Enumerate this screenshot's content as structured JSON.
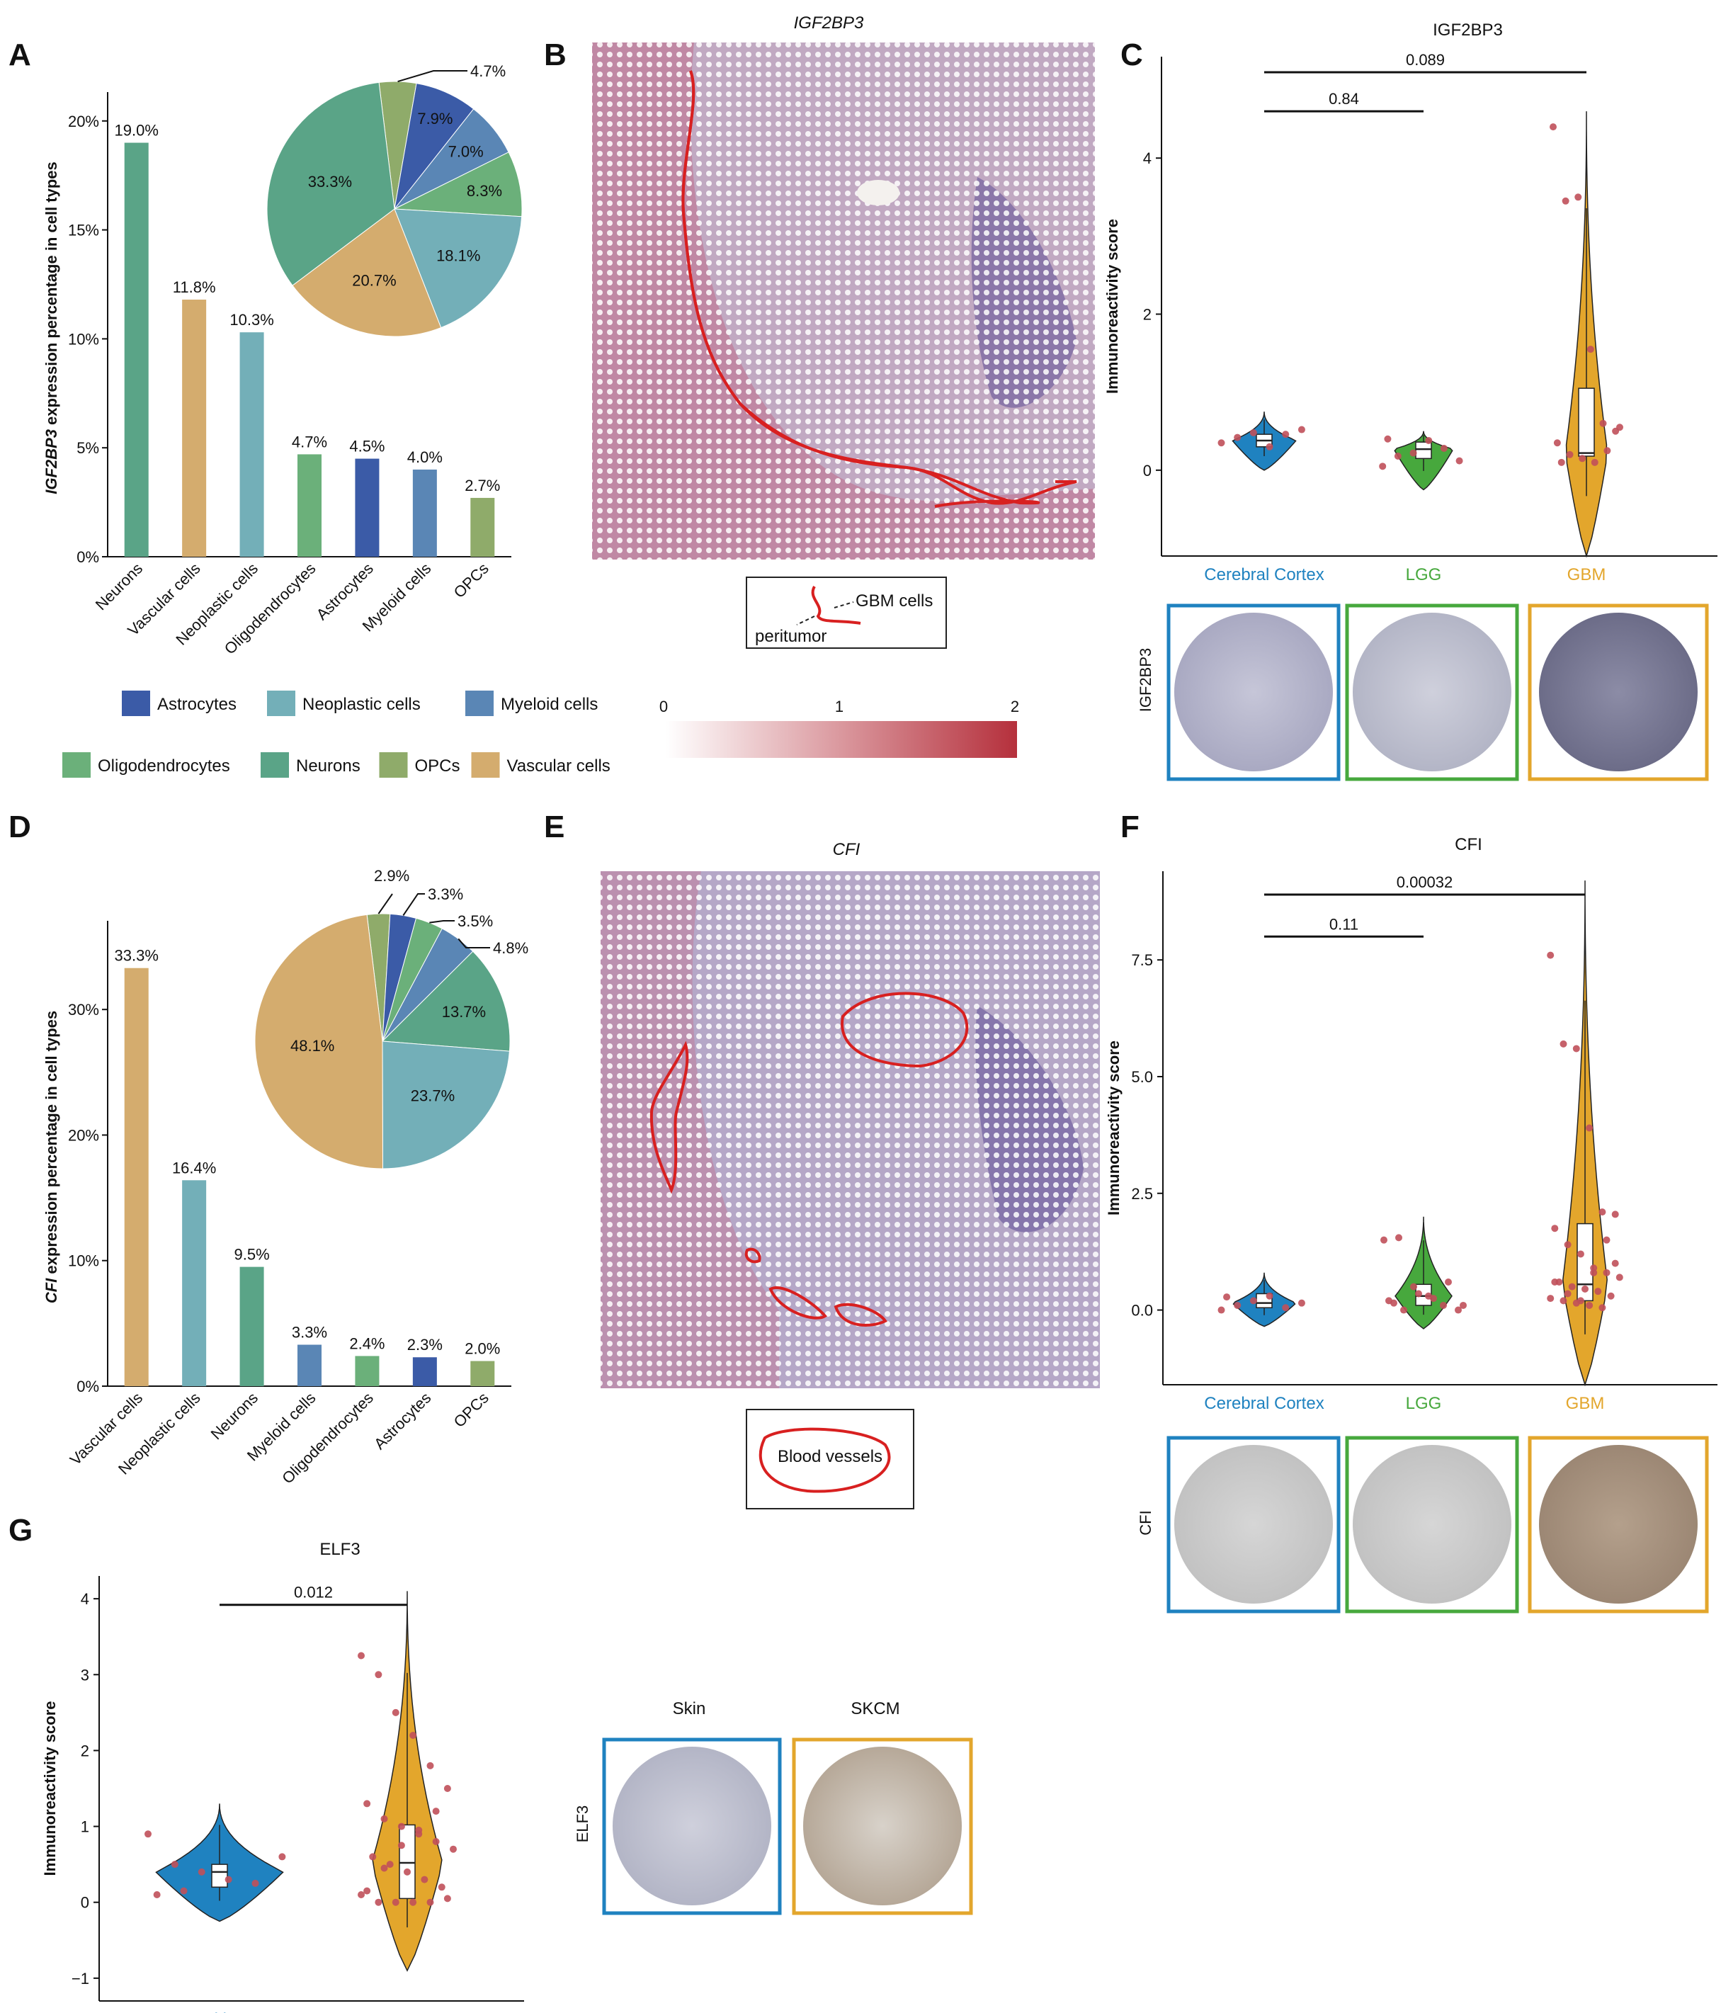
{
  "panels": {
    "A": "A",
    "B": "B",
    "C": "C",
    "D": "D",
    "E": "E",
    "F": "F",
    "G": "G"
  },
  "colors": {
    "Neurons": "#5aa487",
    "Vascular cells": "#d4ac6e",
    "Neoplastic cells": "#73afb8",
    "Oligodendrocytes": "#6bb07a",
    "Astrocytes": "#3b5ba7",
    "Myeloid cells": "#5a86b5",
    "OPCs": "#8fab6a",
    "cortex": "#1f82c0",
    "lgg": "#47a83d",
    "gbm": "#e3a62c",
    "skin": "#1f82c0",
    "skcm": "#e3a62c",
    "bracket": "#111111"
  },
  "legend": {
    "row1": [
      "Astrocytes",
      "Neoplastic cells",
      "Myeloid cells"
    ],
    "row2": [
      "Oligodendrocytes",
      "Neurons",
      "OPCs",
      "Vascular cells"
    ]
  },
  "spatial_B": {
    "title": "IGF2BP3",
    "inset_labels": [
      "GBM cells",
      "peritumor"
    ],
    "colorbar_ticks": [
      "0",
      "1",
      "2"
    ]
  },
  "spatial_E": {
    "title": "CFI",
    "inset_label": "Blood vessels"
  },
  "ihc": {
    "C_row_label": "IGF2BP3",
    "F_row_label": "CFI",
    "G_row_label": "ELF3",
    "G_col_labels": [
      "Skin",
      "SKCM"
    ]
  },
  "chart_data": [
    {
      "id": "A-bar",
      "type": "bar",
      "categories": [
        "Neurons",
        "Vascular cells",
        "Neoplastic cells",
        "Oligodendrocytes",
        "Astrocytes",
        "Myeloid cells",
        "OPCs"
      ],
      "values": [
        19.0,
        11.8,
        10.3,
        4.7,
        4.5,
        4.0,
        2.7
      ],
      "value_labels": [
        "19.0%",
        "11.8%",
        "10.3%",
        "4.7%",
        "4.5%",
        "4.0%",
        "2.7%"
      ],
      "ylabel": "IGF2BP3 expression percentage in cell types",
      "ylim": [
        0,
        21
      ],
      "yticks": [
        0,
        5,
        10,
        15,
        20
      ],
      "ytick_labels": [
        "0%",
        "5%",
        "10%",
        "15%",
        "20%"
      ]
    },
    {
      "id": "A-pie",
      "type": "pie",
      "slices": [
        {
          "name": "OPCs",
          "value": 4.7,
          "label": "4.7%"
        },
        {
          "name": "Astrocytes",
          "value": 7.9,
          "label": "7.9%"
        },
        {
          "name": "Myeloid cells",
          "value": 7.0,
          "label": "7.0%"
        },
        {
          "name": "Oligodendrocytes",
          "value": 8.3,
          "label": "8.3%"
        },
        {
          "name": "Neoplastic cells",
          "value": 18.1,
          "label": "18.1%"
        },
        {
          "name": "Vascular cells",
          "value": 20.7,
          "label": "20.7%"
        },
        {
          "name": "Neurons",
          "value": 33.3,
          "label": "33.3%"
        }
      ]
    },
    {
      "id": "C-violin",
      "type": "violin",
      "title": "IGF2BP3",
      "ylabel": "Immunoreactivity score",
      "ylim": [
        -1.1,
        5.3
      ],
      "yticks": [
        0,
        2,
        4
      ],
      "ytick_labels": [
        "0",
        "2",
        "4"
      ],
      "groups": [
        {
          "name": "Cerebral Cortex",
          "color_key": "cortex",
          "ymin": 0.0,
          "ymax": 0.75,
          "q1": 0.3,
          "median": 0.38,
          "q3": 0.46,
          "points": [
            0.35,
            0.42,
            0.48,
            0.3,
            0.46,
            0.52
          ]
        },
        {
          "name": "LGG",
          "color_key": "lgg",
          "ymin": -0.25,
          "ymax": 0.5,
          "q1": 0.15,
          "median": 0.27,
          "q3": 0.36,
          "points": [
            0.05,
            0.18,
            0.22,
            0.38,
            0.28,
            0.12,
            0.4
          ]
        },
        {
          "name": "GBM",
          "color_key": "gbm",
          "ymin": -1.1,
          "ymax": 4.6,
          "q1": 0.18,
          "median": 0.22,
          "q3": 1.05,
          "points": [
            4.4,
            3.45,
            3.5,
            1.55,
            0.6,
            0.5,
            0.35,
            0.2,
            0.15,
            0.1,
            0.25,
            0.55,
            0.1
          ]
        }
      ],
      "comparisons": [
        {
          "a": 0,
          "b": 1,
          "label": "0.84",
          "y": 4.6
        },
        {
          "a": 0,
          "b": 2,
          "label": "0.089",
          "y": 5.1
        }
      ]
    },
    {
      "id": "D-bar",
      "type": "bar",
      "categories": [
        "Vascular cells",
        "Neoplastic cells",
        "Neurons",
        "Myeloid cells",
        "Oligodendrocytes",
        "Astrocytes",
        "OPCs"
      ],
      "values": [
        33.3,
        16.4,
        9.5,
        3.3,
        2.4,
        2.3,
        2.0
      ],
      "value_labels": [
        "33.3%",
        "16.4%",
        "9.5%",
        "3.3%",
        "2.4%",
        "2.3%",
        "2.0%"
      ],
      "ylabel": "CFI expression percentage in cell types",
      "ylim": [
        0,
        36.5
      ],
      "yticks": [
        0,
        10,
        20,
        30
      ],
      "ytick_labels": [
        "0%",
        "10%",
        "20%",
        "30%"
      ]
    },
    {
      "id": "D-pie",
      "type": "pie",
      "slices": [
        {
          "name": "OPCs",
          "value": 2.9,
          "label": "2.9%"
        },
        {
          "name": "Astrocytes",
          "value": 3.3,
          "label": "3.3%"
        },
        {
          "name": "Oligodendrocytes",
          "value": 3.5,
          "label": "3.5%"
        },
        {
          "name": "Myeloid cells",
          "value": 4.8,
          "label": "4.8%"
        },
        {
          "name": "Neurons",
          "value": 13.7,
          "label": "13.7%"
        },
        {
          "name": "Neoplastic cells",
          "value": 23.7,
          "label": "23.7%"
        },
        {
          "name": "Vascular cells",
          "value": 48.1,
          "label": "48.1%"
        }
      ]
    },
    {
      "id": "F-violin",
      "type": "violin",
      "title": "CFI",
      "ylabel": "Immunoreactivity score",
      "ylim": [
        -1.6,
        9.4
      ],
      "yticks": [
        0,
        2.5,
        5,
        7.5
      ],
      "ytick_labels": [
        "0.0",
        "2.5",
        "5.0",
        "7.5"
      ],
      "groups": [
        {
          "name": "Cerebral Cortex",
          "color_key": "cortex",
          "ymin": -0.35,
          "ymax": 0.8,
          "q1": 0.05,
          "median": 0.15,
          "q3": 0.35,
          "points": [
            0.0,
            0.1,
            0.2,
            0.3,
            0.05,
            0.15,
            0.28
          ]
        },
        {
          "name": "LGG",
          "color_key": "lgg",
          "ymin": -0.4,
          "ymax": 2.0,
          "q1": 0.1,
          "median": 0.3,
          "q3": 0.55,
          "points": [
            1.5,
            1.55,
            0.5,
            0.3,
            0.1,
            0.0,
            0.2,
            0.0,
            0.35,
            0.25,
            0.6,
            0.1,
            0.15
          ]
        },
        {
          "name": "GBM",
          "color_key": "gbm",
          "ymin": -1.6,
          "ymax": 9.2,
          "q1": 0.2,
          "median": 0.55,
          "q3": 1.85,
          "points": [
            7.6,
            5.7,
            5.6,
            3.9,
            2.1,
            2.05,
            1.75,
            1.4,
            1.2,
            0.9,
            0.8,
            0.7,
            0.6,
            0.5,
            0.45,
            0.4,
            0.3,
            0.25,
            0.2,
            0.15,
            0.1,
            0.05,
            1.0,
            0.6,
            0.35,
            0.2,
            0.8,
            1.5
          ]
        }
      ],
      "comparisons": [
        {
          "a": 0,
          "b": 1,
          "label": "0.11",
          "y": 8.0
        },
        {
          "a": 0,
          "b": 2,
          "label": "0.00032",
          "y": 8.9
        }
      ]
    },
    {
      "id": "G-violin",
      "type": "violin",
      "title": "ELF3",
      "ylabel": "Immunoreactivity score",
      "ylim": [
        -1.3,
        4.3
      ],
      "yticks": [
        -1,
        0,
        1,
        2,
        3,
        4
      ],
      "ytick_labels": [
        "−1",
        "0",
        "1",
        "2",
        "3",
        "4"
      ],
      "groups": [
        {
          "name": "Skin",
          "color_key": "skin",
          "ymin": -0.25,
          "ymax": 1.3,
          "q1": 0.2,
          "median": 0.4,
          "q3": 0.5,
          "points": [
            0.9,
            0.5,
            0.4,
            0.3,
            0.25,
            0.6,
            0.1,
            0.15
          ]
        },
        {
          "name": "SKCM",
          "color_key": "skcm",
          "ymin": -0.9,
          "ymax": 4.1,
          "q1": 0.05,
          "median": 0.52,
          "q3": 1.02,
          "points": [
            3.25,
            3.0,
            2.5,
            2.2,
            1.8,
            1.5,
            1.3,
            1.1,
            1.0,
            0.9,
            0.8,
            0.7,
            0.6,
            0.5,
            0.4,
            0.3,
            0.2,
            0.1,
            0.0,
            0.0,
            0.0,
            0.0,
            0.05,
            0.15,
            0.45,
            0.75,
            0.95,
            1.2
          ]
        }
      ],
      "comparisons": [
        {
          "a": 0,
          "b": 1,
          "label": "0.012",
          "y": 3.92
        }
      ]
    }
  ]
}
